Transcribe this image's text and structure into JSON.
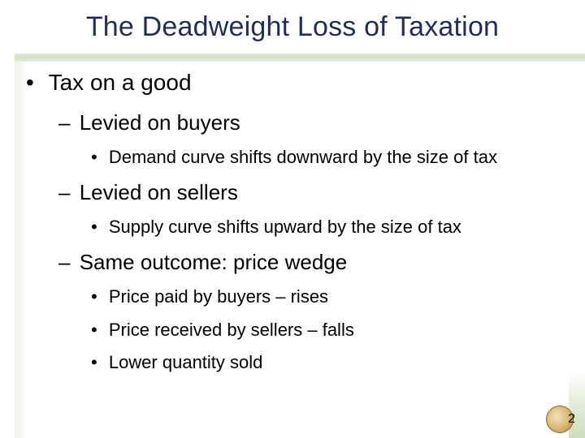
{
  "slide": {
    "title": "The Deadweight Loss of Taxation",
    "page_number": "2"
  },
  "bullets": [
    {
      "level": 1,
      "marker": "•",
      "text": "Tax on a good"
    },
    {
      "level": 2,
      "marker": "–",
      "text": "Levied on buyers"
    },
    {
      "level": 3,
      "marker": "•",
      "text": "Demand curve shifts downward by the size of tax"
    },
    {
      "level": 2,
      "marker": "–",
      "text": "Levied on sellers"
    },
    {
      "level": 3,
      "marker": "•",
      "text": "Supply curve shifts upward by the size of tax"
    },
    {
      "level": 2,
      "marker": "–",
      "text": "Same outcome: price wedge"
    },
    {
      "level": 3,
      "marker": "•",
      "text": "Price paid by buyers – rises"
    },
    {
      "level": 3,
      "marker": "•",
      "text": "Price received by sellers – falls"
    },
    {
      "level": 3,
      "marker": "•",
      "text": "Lower quantity sold"
    }
  ]
}
